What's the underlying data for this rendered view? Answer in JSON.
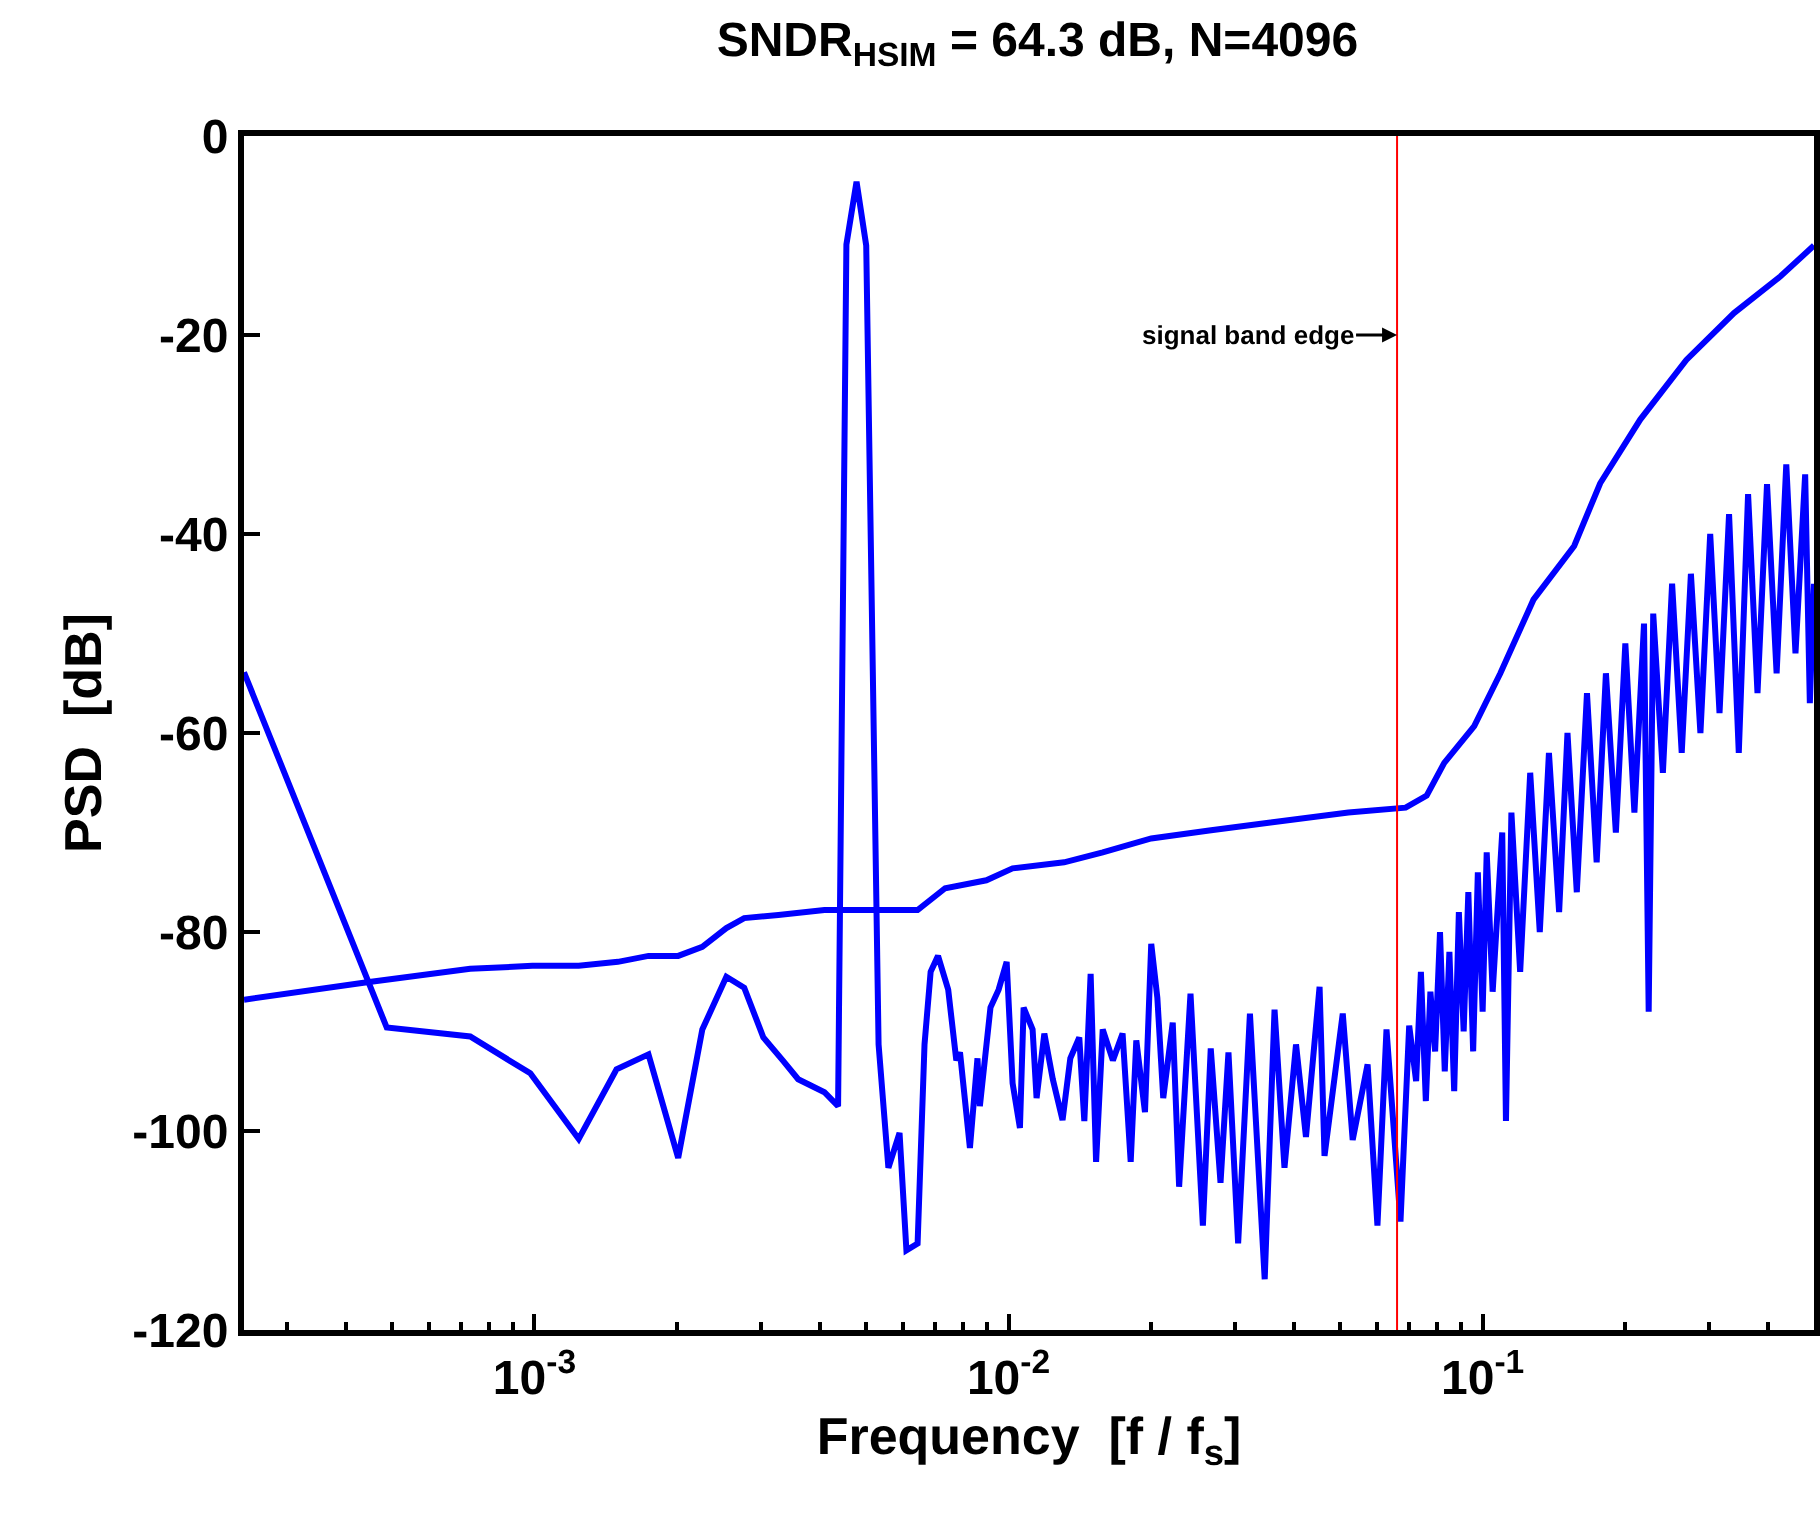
{
  "chart_data": {
    "type": "line",
    "title": "SNDR$_{HSIM}$ = 64.3 dB, N=4096",
    "xlabel": "Frequency  [f / f$_{s}$]",
    "ylabel": "PSD  [dB]",
    "log": "x",
    "xlim": [
      0.000244,
      0.5
    ],
    "xticks": [
      {
        "value": 0.001,
        "label": "10$^{-3}$"
      },
      {
        "value": 0.01,
        "label": "10$^{-2}$"
      },
      {
        "value": 0.1,
        "label": "10$^{-1}$"
      }
    ],
    "ylim": [
      -120,
      0
    ],
    "yticks": [
      -120,
      -100,
      -80,
      -60,
      -40,
      -20,
      0
    ],
    "marker": "none",
    "line_style": "solid",
    "series": [
      {
        "color": "#0000ff",
        "x": [
          0.000244,
          0.000488,
          0.000732,
          0.00098,
          0.00124,
          0.00149,
          0.00174,
          0.00201,
          0.00226,
          0.00254,
          0.00277,
          0.00304,
          0.00334,
          0.0036,
          0.00409,
          0.00437,
          0.00455,
          0.00478,
          0.00501,
          0.00532,
          0.00558,
          0.00589,
          0.00609,
          0.00643,
          0.00665,
          0.00685,
          0.0071,
          0.00746,
          0.00776,
          0.0079,
          0.00829,
          0.0086,
          0.0087,
          0.00916,
          0.00953,
          0.00991,
          0.0102,
          0.01057,
          0.01076,
          0.01124,
          0.01146,
          0.0119,
          0.0124,
          0.013,
          0.0135,
          0.0141,
          0.01445,
          0.0149,
          0.0153,
          0.0158,
          0.0166,
          0.0174,
          0.0181,
          0.0186,
          0.0194,
          0.02,
          0.0206,
          0.0212,
          0.0222,
          0.0229,
          0.0242,
          0.0257,
          0.0267,
          0.028,
          0.0291,
          0.0305,
          0.0323,
          0.0347,
          0.0364,
          0.0382,
          0.0404,
          0.0424,
          0.0453,
          0.0464,
          0.0507,
          0.0532,
          0.0572,
          0.06,
          0.0627,
          0.0671,
          0.07,
          0.0724,
          0.0741,
          0.0759,
          0.0776,
          0.0794,
          0.0813,
          0.0832,
          0.0851,
          0.0871,
          0.0891,
          0.0912,
          0.0933,
          0.0955,
          0.0977,
          0.1,
          0.102,
          0.105,
          0.11,
          0.112,
          0.115,
          0.12,
          0.126,
          0.132,
          0.138,
          0.145,
          0.151,
          0.158,
          0.166,
          0.174,
          0.182,
          0.191,
          0.2,
          0.209,
          0.219,
          0.224,
          0.229,
          0.24,
          0.251,
          0.263,
          0.275,
          0.288,
          0.302,
          0.316,
          0.331,
          0.347,
          0.363,
          0.38,
          0.398,
          0.417,
          0.437,
          0.457,
          0.479,
          0.49,
          0.5
        ],
        "values": [
          -53.9,
          -89.6,
          -90.5,
          -94.2,
          -100.8,
          -93.8,
          -92.3,
          -102.7,
          -89.8,
          -84.5,
          -85.6,
          -90.6,
          -92.9,
          -94.8,
          -96.1,
          -97.5,
          -10.9,
          -4.6,
          -11,
          -91.3,
          -103.7,
          -100.2,
          -112,
          -111.3,
          -91.3,
          -84,
          -82.4,
          -85.8,
          -92.9,
          -92.1,
          -101.7,
          -92.7,
          -97.5,
          -87.6,
          -85.8,
          -83,
          -95.2,
          -99.7,
          -87.6,
          -89.8,
          -96.7,
          -90.2,
          -94.8,
          -98.9,
          -92.7,
          -90.6,
          -99,
          -84.2,
          -103.1,
          -89.8,
          -92.9,
          -90.2,
          -103.1,
          -90.9,
          -98.1,
          -81.2,
          -86.6,
          -96.7,
          -89.1,
          -105.6,
          -86.2,
          -109.5,
          -91.7,
          -105.2,
          -92.1,
          -111.3,
          -88.2,
          -114.9,
          -87.8,
          -103.7,
          -91.3,
          -100.6,
          -85.5,
          -102.5,
          -88.2,
          -100.9,
          -93.3,
          -109.5,
          -89.8,
          -109.1,
          -89.4,
          -95,
          -84,
          -97,
          -86,
          -92,
          -80,
          -94,
          -82,
          -96,
          -78,
          -90,
          -76,
          -92,
          -74,
          -88,
          -72,
          -86,
          -70,
          -99,
          -68,
          -84,
          -64,
          -80,
          -62,
          -78,
          -60,
          -76,
          -56,
          -73,
          -54,
          -70,
          -51,
          -68,
          -49,
          -88,
          -48,
          -64,
          -45,
          -62,
          -44,
          -60,
          -40,
          -58,
          -38,
          -62,
          -36,
          -56,
          -35,
          -54,
          -33,
          -52,
          -34,
          -57,
          -45
        ]
      },
      {
        "color": "#0000ff",
        "x": [
          0.000244,
          0.000436,
          0.000732,
          0.00099,
          0.00124,
          0.0015,
          0.00174,
          0.00201,
          0.00226,
          0.00254,
          0.00277,
          0.00327,
          0.00409,
          0.00643,
          0.00735,
          0.00898,
          0.0102,
          0.0131,
          0.0158,
          0.02,
          0.0265,
          0.0357,
          0.0521,
          0.0688,
          0.0762,
          0.083,
          0.096,
          0.109,
          0.128,
          0.156,
          0.177,
          0.215,
          0.269,
          0.339,
          0.425,
          0.5
        ],
        "values": [
          -86.8,
          -85.1,
          -83.7,
          -83.4,
          -83.4,
          -83,
          -82.4,
          -82.4,
          -81.5,
          -79.6,
          -78.6,
          -78.3,
          -77.8,
          -77.8,
          -75.6,
          -74.8,
          -73.6,
          -73,
          -72,
          -70.6,
          -69.8,
          -69,
          -68,
          -67.5,
          -66.3,
          -63,
          -59.3,
          -54,
          -46.6,
          -41.2,
          -34.9,
          -28.5,
          -22.5,
          -17.8,
          -14.1,
          -11
        ]
      }
    ],
    "ref_lines": [
      {
        "axis": "x",
        "value": 0.066,
        "color": "#ff0000"
      }
    ],
    "annotations": [
      {
        "text": "signal band edge",
        "x": 0.066,
        "y": -20
      }
    ]
  }
}
